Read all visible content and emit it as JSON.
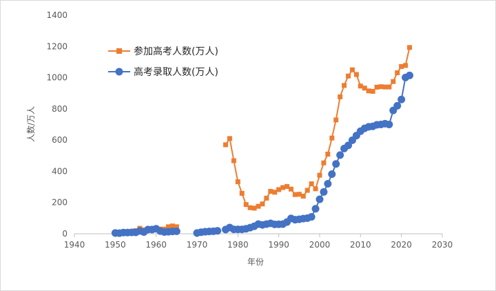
{
  "chart_data": {
    "type": "line",
    "title": "",
    "xlabel": "年份",
    "ylabel": "人数/万人",
    "xlim": [
      1940,
      2030
    ],
    "ylim": [
      0,
      1400
    ],
    "xticks": [
      "1940",
      "1950",
      "1960",
      "1970",
      "1980",
      "1990",
      "2000",
      "2010",
      "2020",
      "2030"
    ],
    "yticks": [
      "0",
      "200",
      "400",
      "600",
      "800",
      "1000",
      "1200",
      "1400"
    ],
    "grid": false,
    "legend_position": "top-left",
    "series": [
      {
        "name": "参加高考人数(万人)",
        "color": "#ed7d31",
        "marker": "square",
        "points": [
          [
            1950,
            5
          ],
          [
            1951,
            3
          ],
          [
            1952,
            7
          ],
          [
            1953,
            7
          ],
          [
            1954,
            10
          ],
          [
            1955,
            20
          ],
          [
            1956,
            35
          ],
          [
            1957,
            25
          ],
          [
            1958,
            27
          ],
          [
            1959,
            30
          ],
          [
            1960,
            32
          ],
          [
            1961,
            30
          ],
          [
            1962,
            30
          ],
          [
            1963,
            45
          ],
          [
            1964,
            50
          ],
          [
            1965,
            45
          ],
          [
            1977,
            570
          ],
          [
            1978,
            610
          ],
          [
            1979,
            468
          ],
          [
            1980,
            333
          ],
          [
            1981,
            259
          ],
          [
            1982,
            187
          ],
          [
            1983,
            167
          ],
          [
            1984,
            164
          ],
          [
            1985,
            176
          ],
          [
            1986,
            191
          ],
          [
            1987,
            228
          ],
          [
            1988,
            272
          ],
          [
            1989,
            266
          ],
          [
            1990,
            283
          ],
          [
            1991,
            296
          ],
          [
            1992,
            303
          ],
          [
            1993,
            286
          ],
          [
            1994,
            251
          ],
          [
            1995,
            253
          ],
          [
            1996,
            241
          ],
          [
            1997,
            278
          ],
          [
            1998,
            320
          ],
          [
            1999,
            288
          ],
          [
            2000,
            375
          ],
          [
            2001,
            454
          ],
          [
            2002,
            510
          ],
          [
            2003,
            613
          ],
          [
            2004,
            729
          ],
          [
            2005,
            877
          ],
          [
            2006,
            950
          ],
          [
            2007,
            1010
          ],
          [
            2008,
            1050
          ],
          [
            2009,
            1020
          ],
          [
            2010,
            946
          ],
          [
            2011,
            933
          ],
          [
            2012,
            915
          ],
          [
            2013,
            912
          ],
          [
            2014,
            939
          ],
          [
            2015,
            942
          ],
          [
            2016,
            940
          ],
          [
            2017,
            940
          ],
          [
            2018,
            975
          ],
          [
            2019,
            1031
          ],
          [
            2020,
            1071
          ],
          [
            2021,
            1078
          ],
          [
            2022,
            1193
          ]
        ]
      },
      {
        "name": "高考录取人数(万人)",
        "color": "#4472c4",
        "marker": "circle",
        "points": [
          [
            1950,
            5
          ],
          [
            1951,
            4
          ],
          [
            1952,
            8
          ],
          [
            1953,
            8
          ],
          [
            1954,
            9
          ],
          [
            1955,
            9
          ],
          [
            1956,
            18
          ],
          [
            1957,
            11
          ],
          [
            1958,
            27
          ],
          [
            1959,
            27
          ],
          [
            1960,
            32
          ],
          [
            1961,
            17
          ],
          [
            1962,
            11
          ],
          [
            1963,
            13
          ],
          [
            1964,
            15
          ],
          [
            1965,
            16
          ],
          [
            1970,
            5
          ],
          [
            1971,
            10
          ],
          [
            1972,
            13
          ],
          [
            1973,
            15
          ],
          [
            1974,
            16
          ],
          [
            1975,
            19
          ],
          [
            1977,
            27
          ],
          [
            1978,
            40
          ],
          [
            1979,
            28
          ],
          [
            1980,
            28
          ],
          [
            1981,
            28
          ],
          [
            1982,
            32
          ],
          [
            1983,
            39
          ],
          [
            1984,
            48
          ],
          [
            1985,
            62
          ],
          [
            1986,
            57
          ],
          [
            1987,
            62
          ],
          [
            1988,
            67
          ],
          [
            1989,
            60
          ],
          [
            1990,
            61
          ],
          [
            1991,
            62
          ],
          [
            1992,
            75
          ],
          [
            1993,
            98
          ],
          [
            1994,
            90
          ],
          [
            1995,
            93
          ],
          [
            1996,
            97
          ],
          [
            1997,
            100
          ],
          [
            1998,
            108
          ],
          [
            1999,
            160
          ],
          [
            2000,
            221
          ],
          [
            2001,
            268
          ],
          [
            2002,
            320
          ],
          [
            2003,
            382
          ],
          [
            2004,
            447
          ],
          [
            2005,
            504
          ],
          [
            2006,
            546
          ],
          [
            2007,
            566
          ],
          [
            2008,
            599
          ],
          [
            2009,
            629
          ],
          [
            2010,
            657
          ],
          [
            2011,
            675
          ],
          [
            2012,
            685
          ],
          [
            2013,
            688
          ],
          [
            2014,
            698
          ],
          [
            2015,
            700
          ],
          [
            2016,
            705
          ],
          [
            2017,
            700
          ],
          [
            2018,
            790
          ],
          [
            2019,
            820
          ],
          [
            2020,
            860
          ],
          [
            2021,
            1001
          ],
          [
            2022,
            1014
          ]
        ]
      }
    ]
  }
}
